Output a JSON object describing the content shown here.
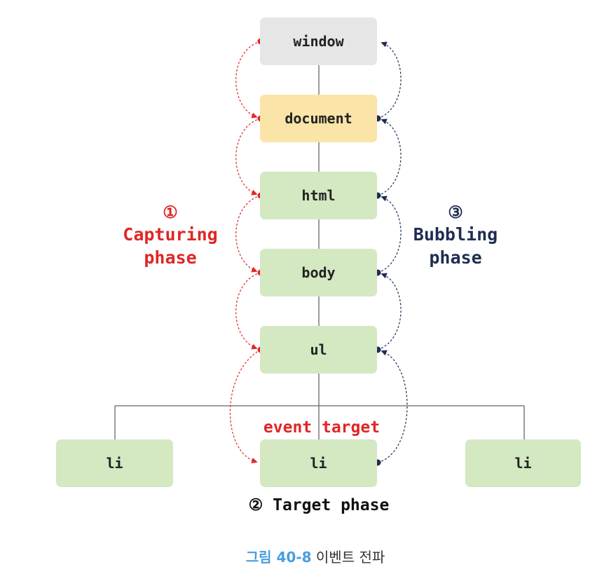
{
  "nodes": {
    "window": "window",
    "document": "document",
    "html": "html",
    "body": "body",
    "ul": "ul",
    "li_left": "li",
    "li_center": "li",
    "li_right": "li"
  },
  "capturing_phase": {
    "number": "①",
    "line1": "Capturing",
    "line2": "phase",
    "color": "#e02626"
  },
  "bubbling_phase": {
    "number": "③",
    "line1": "Bubbling",
    "line2": "phase",
    "color": "#1f2d52"
  },
  "event_target_label": "event target",
  "target_phase_label": "② Target phase",
  "caption": {
    "figure_number": "그림 40-8",
    "title": "이벤트 전파"
  },
  "colors": {
    "window_fill": "#e6e6e6",
    "document_fill": "#fae4a8",
    "element_fill": "#d4e8c2",
    "capture_red": "#e02626",
    "bubble_navy": "#1f2d52",
    "caption_blue": "#4a9de0"
  }
}
